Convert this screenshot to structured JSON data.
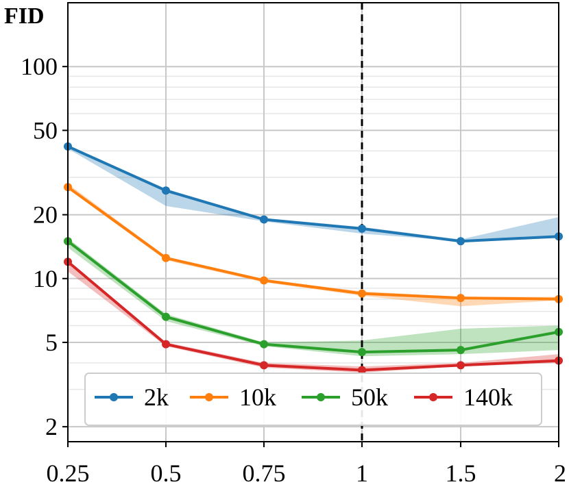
{
  "chart_data": {
    "type": "line",
    "title": "",
    "xlabel": "",
    "ylabel": "FID",
    "y_scale": "log",
    "ylim": [
      1.7,
      200
    ],
    "x_categories": [
      "0.25",
      "0.5",
      "0.75",
      "1",
      "1.5",
      "2"
    ],
    "y_ticks": [
      2,
      5,
      10,
      20,
      50,
      100
    ],
    "y_tick_labels": [
      "2",
      "5",
      "10",
      "20",
      "50",
      "100"
    ],
    "reference_line_x": "1",
    "grid": true,
    "legend_position": "bottom",
    "series": [
      {
        "name": "2k",
        "color": "#1f77b4",
        "values": [
          42,
          26,
          19,
          17.2,
          15,
          15.8
        ],
        "band_low": [
          41,
          22,
          18.6,
          16.3,
          15,
          15.5
        ],
        "band_high": [
          42.5,
          26.5,
          19.3,
          17.5,
          15.3,
          19.5
        ]
      },
      {
        "name": "10k",
        "color": "#ff7f0e",
        "values": [
          27,
          12.5,
          9.8,
          8.5,
          8.1,
          8.0
        ],
        "band_low": [
          26.5,
          12.2,
          9.6,
          8.3,
          7.4,
          7.9
        ],
        "band_high": [
          28,
          12.7,
          9.9,
          8.7,
          8.2,
          8.2
        ]
      },
      {
        "name": "50k",
        "color": "#2ca02c",
        "values": [
          15,
          6.6,
          4.9,
          4.5,
          4.6,
          5.6
        ],
        "band_low": [
          14,
          6.3,
          4.8,
          4.3,
          4.4,
          4.6
        ],
        "band_high": [
          15.5,
          6.8,
          5.0,
          5.1,
          5.8,
          6.0
        ]
      },
      {
        "name": "140k",
        "color": "#d62728",
        "values": [
          12,
          4.9,
          3.9,
          3.7,
          3.9,
          4.1
        ],
        "band_low": [
          10.8,
          4.8,
          3.8,
          3.6,
          3.85,
          4.0
        ],
        "band_high": [
          12.2,
          5.0,
          4.0,
          3.85,
          4.0,
          4.4
        ]
      }
    ]
  }
}
